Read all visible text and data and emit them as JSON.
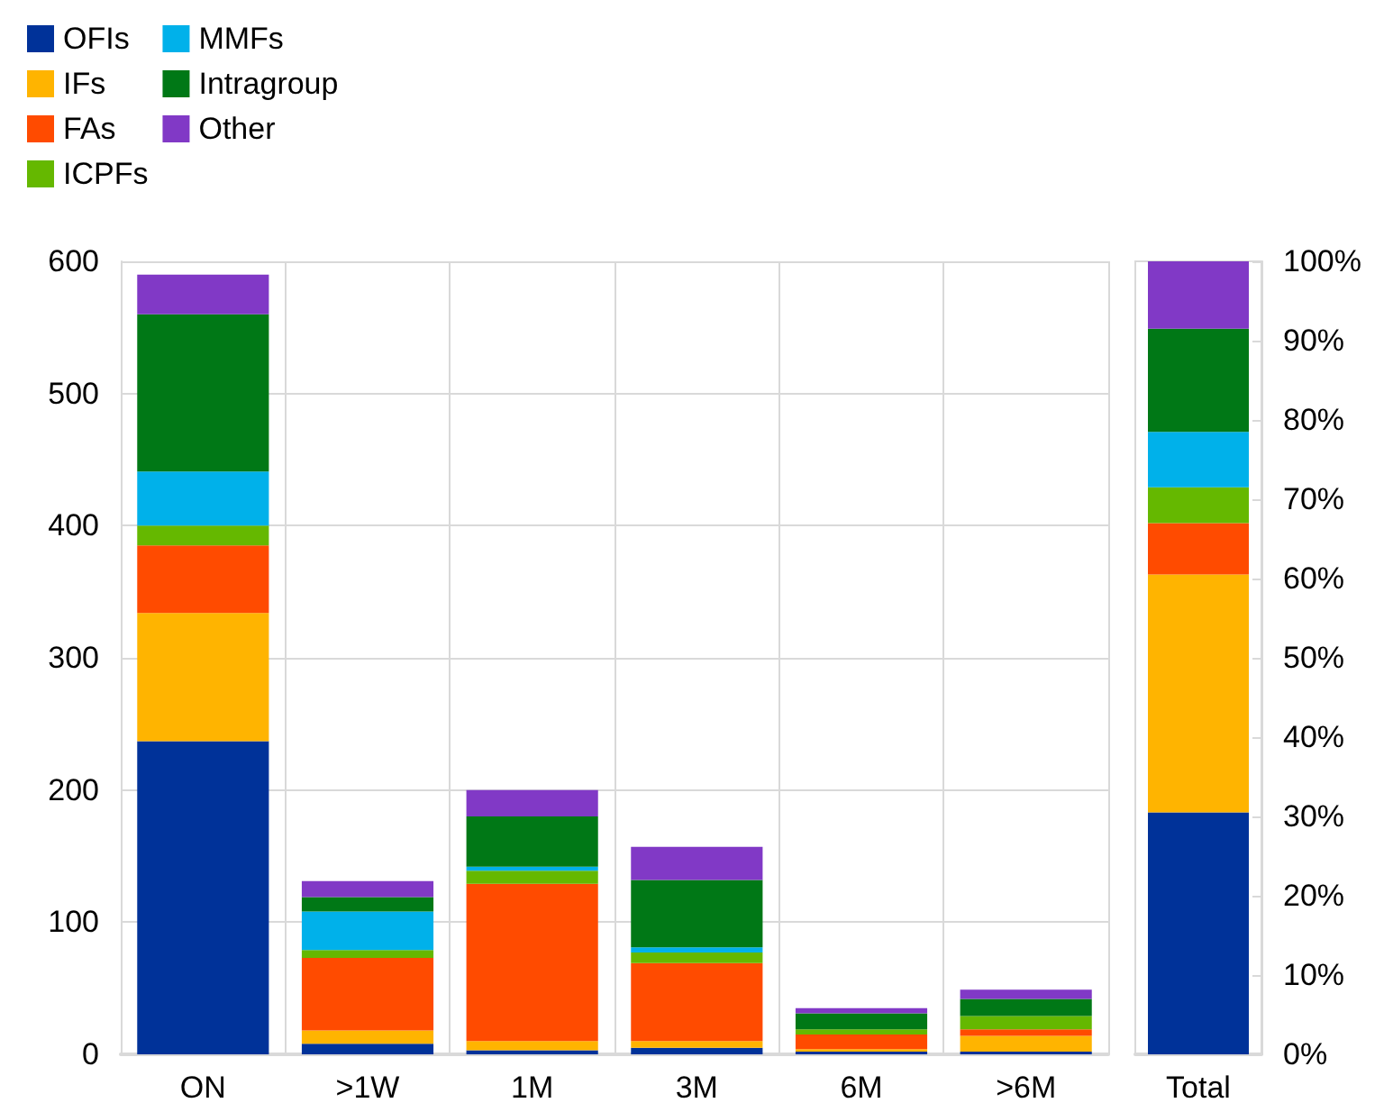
{
  "chart_data": [
    {
      "type": "bar",
      "stacked": true,
      "categories": [
        "ON",
        ">1W",
        "1M",
        "3M",
        "6M",
        ">6M"
      ],
      "series": [
        {
          "name": "OFIs",
          "color": "#003299",
          "values": [
            237,
            8,
            3,
            5,
            2,
            2
          ]
        },
        {
          "name": "IFs",
          "color": "#ffb400",
          "values": [
            97,
            10,
            7,
            5,
            2,
            12
          ]
        },
        {
          "name": "FAs",
          "color": "#ff4b00",
          "values": [
            51,
            55,
            119,
            59,
            11,
            5
          ]
        },
        {
          "name": "ICPFs",
          "color": "#65b800",
          "values": [
            15,
            6,
            10,
            8,
            4,
            10
          ]
        },
        {
          "name": "MMFs",
          "color": "#00b1ea",
          "values": [
            41,
            29,
            3,
            4,
            0,
            0
          ]
        },
        {
          "name": "Intragroup",
          "color": "#007816",
          "values": [
            119,
            11,
            38,
            51,
            12,
            13
          ]
        },
        {
          "name": "Other",
          "color": "#8139c6",
          "values": [
            30,
            12,
            20,
            25,
            4,
            7
          ]
        }
      ],
      "ylim": [
        0,
        600
      ],
      "yticks": [
        0,
        100,
        200,
        300,
        400,
        500,
        600
      ],
      "grid": true,
      "legend": "top left"
    },
    {
      "type": "bar",
      "stacked": true,
      "categories": [
        "Total"
      ],
      "series": [
        {
          "color": "#003299",
          "values": [
            30.5
          ]
        },
        {
          "color": "#ffb400",
          "values": [
            30
          ]
        },
        {
          "color": "#ff4b00",
          "values": [
            6.5
          ]
        },
        {
          "color": "#65b800",
          "values": [
            4.5
          ]
        },
        {
          "color": "#00b1ea",
          "values": [
            7
          ]
        },
        {
          "color": "#007816",
          "values": [
            13
          ]
        },
        {
          "color": "#8139c6",
          "values": [
            8.5
          ]
        }
      ],
      "ylim": [
        0,
        100
      ],
      "yticks": [
        {
          "value": 0,
          "label": "0%"
        },
        {
          "value": 10,
          "label": "10%"
        },
        {
          "value": 20,
          "label": "20%"
        },
        {
          "value": 30,
          "label": "30%"
        },
        {
          "value": 40,
          "label": "40%"
        },
        {
          "value": 50,
          "label": "50%"
        },
        {
          "value": 60,
          "label": "60%"
        },
        {
          "value": 70,
          "label": "70%"
        },
        {
          "value": 80,
          "label": "80%"
        },
        {
          "value": 90,
          "label": "90%"
        },
        {
          "value": 100,
          "label": "100%"
        }
      ],
      "grid": false
    }
  ]
}
